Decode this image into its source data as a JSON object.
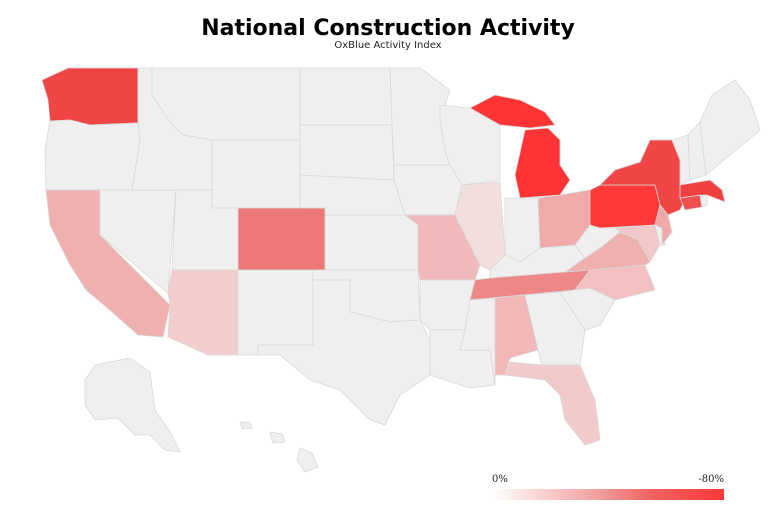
{
  "title": "National Construction Activity",
  "subtitle": "OxBlue Activity Index",
  "legend": {
    "min_label": "0%",
    "max_label": "-80%",
    "color_low": "#ffffff",
    "color_high": "#ff3838"
  },
  "colors": {
    "neutral": "#efefef",
    "border": "#d8d8d8"
  },
  "states": [
    {
      "name": "Washington",
      "color": "#f04545"
    },
    {
      "name": "Oregon",
      "color": "#efefef"
    },
    {
      "name": "California",
      "color": "#f0b0b0"
    },
    {
      "name": "Nevada",
      "color": "#efefef"
    },
    {
      "name": "Idaho",
      "color": "#efefef"
    },
    {
      "name": "Montana",
      "color": "#efefef"
    },
    {
      "name": "Wyoming",
      "color": "#efefef"
    },
    {
      "name": "Utah",
      "color": "#efefef"
    },
    {
      "name": "Arizona",
      "color": "#f3cdcd"
    },
    {
      "name": "Colorado",
      "color": "#ee7878"
    },
    {
      "name": "New Mexico",
      "color": "#efefef"
    },
    {
      "name": "North Dakota",
      "color": "#efefef"
    },
    {
      "name": "South Dakota",
      "color": "#efefef"
    },
    {
      "name": "Nebraska",
      "color": "#efefef"
    },
    {
      "name": "Kansas",
      "color": "#efefef"
    },
    {
      "name": "Oklahoma",
      "color": "#efefef"
    },
    {
      "name": "Texas",
      "color": "#efefef"
    },
    {
      "name": "Minnesota",
      "color": "#efefef"
    },
    {
      "name": "Iowa",
      "color": "#efefef"
    },
    {
      "name": "Missouri",
      "color": "#f1baba"
    },
    {
      "name": "Arkansas",
      "color": "#efefef"
    },
    {
      "name": "Louisiana",
      "color": "#efefef"
    },
    {
      "name": "Wisconsin",
      "color": "#efefef"
    },
    {
      "name": "Illinois",
      "color": "#f3dede"
    },
    {
      "name": "Michigan",
      "color": "#ff3535"
    },
    {
      "name": "Indiana",
      "color": "#efefef"
    },
    {
      "name": "Ohio",
      "color": "#f0aaaa"
    },
    {
      "name": "Kentucky",
      "color": "#efefef"
    },
    {
      "name": "Tennessee",
      "color": "#ee8888"
    },
    {
      "name": "Mississippi",
      "color": "#efefef"
    },
    {
      "name": "Alabama",
      "color": "#f2b8b8"
    },
    {
      "name": "Georgia",
      "color": "#efefef"
    },
    {
      "name": "Florida",
      "color": "#f3caca"
    },
    {
      "name": "South Carolina",
      "color": "#efefef"
    },
    {
      "name": "North Carolina",
      "color": "#f2c0c0"
    },
    {
      "name": "Virginia",
      "color": "#f0b0b0"
    },
    {
      "name": "West Virginia",
      "color": "#efefef"
    },
    {
      "name": "Pennsylvania",
      "color": "#ff3838"
    },
    {
      "name": "New York",
      "color": "#f24646"
    },
    {
      "name": "Maryland",
      "color": "#f2c8c8"
    },
    {
      "name": "Delaware",
      "color": "#efefef"
    },
    {
      "name": "New Jersey",
      "color": "#f0a8a8"
    },
    {
      "name": "Connecticut",
      "color": "#ee5050"
    },
    {
      "name": "Rhode Island",
      "color": "#efefef"
    },
    {
      "name": "Massachusetts",
      "color": "#f24040"
    },
    {
      "name": "Vermont",
      "color": "#efefef"
    },
    {
      "name": "New Hampshire",
      "color": "#efefef"
    },
    {
      "name": "Maine",
      "color": "#efefef"
    },
    {
      "name": "Alaska",
      "color": "#efefef"
    },
    {
      "name": "Hawaii",
      "color": "#efefef"
    }
  ]
}
